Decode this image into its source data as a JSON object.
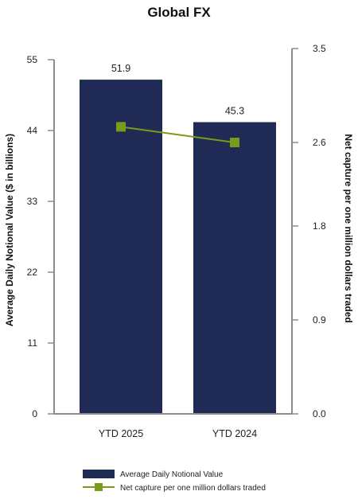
{
  "chart_data": {
    "type": "bar",
    "title": "Global FX",
    "categories": [
      "YTD 2025",
      "YTD 2024"
    ],
    "series": [
      {
        "name": "Average Daily Notional Value",
        "type": "bar",
        "axis": "left",
        "values": [
          51.9,
          45.3
        ],
        "data_labels": [
          "51.9",
          "45.3"
        ],
        "color": "#1f2a55"
      },
      {
        "name": "Net capture per one million dollars traded",
        "type": "line",
        "axis": "right",
        "values": [
          2.75,
          2.6
        ],
        "color": "#7a9a1a"
      }
    ],
    "ylabel": "Average Daily Notional Value ($ in billions)",
    "y2label": "Net capture per one million dollars traded",
    "ylim": [
      0,
      55
    ],
    "y2lim": [
      0,
      3.5
    ],
    "yticks": [
      "0",
      "11",
      "22",
      "33",
      "44",
      "55"
    ],
    "y2ticks": [
      "0.0",
      "0.9",
      "1.8",
      "2.6",
      "3.5"
    ],
    "y2tick_values": [
      0,
      0.9,
      1.8,
      2.6,
      3.5
    ],
    "grid": false,
    "legend_position": "bottom"
  }
}
